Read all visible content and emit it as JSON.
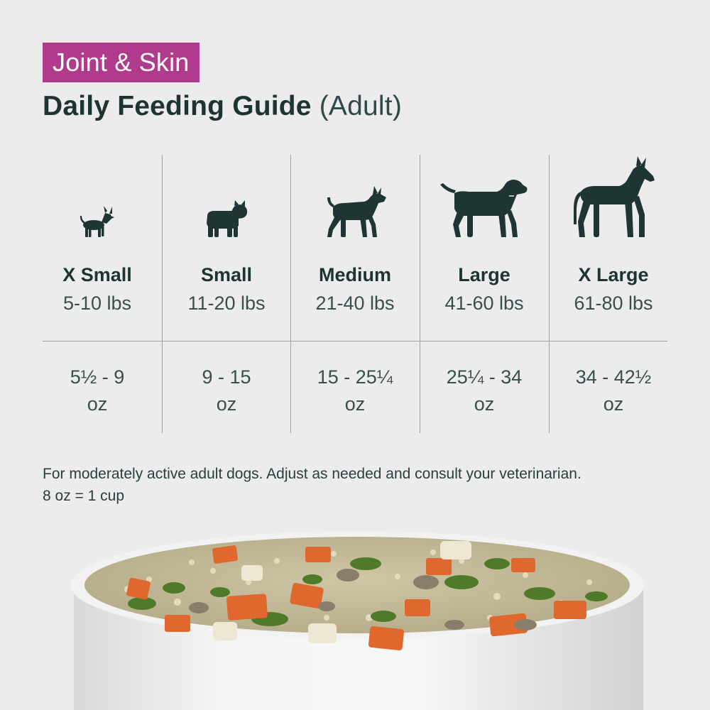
{
  "header": {
    "badge": "Joint & Skin",
    "title": "Daily Feeding Guide",
    "title_suffix": "(Adult)"
  },
  "sizes": [
    {
      "icon": "chihuahua-icon",
      "name": "X Small",
      "range": "5-10 lbs",
      "amount_line1": "5½ - 9",
      "amount_line2": "oz"
    },
    {
      "icon": "bulldog-icon",
      "name": "Small",
      "range": "11-20 lbs",
      "amount_line1": "9 - 15",
      "amount_line2": "oz"
    },
    {
      "icon": "terrier-icon",
      "name": "Medium",
      "range": "21-40 lbs",
      "amount_line1": "15 - 25¼",
      "amount_line2": "oz"
    },
    {
      "icon": "retriever-icon",
      "name": "Large",
      "range": "41-60 lbs",
      "amount_line1": "25¼ - 34",
      "amount_line2": "oz"
    },
    {
      "icon": "great-dane-icon",
      "name": "X Large",
      "range": "61-80 lbs",
      "amount_line1": "34 - 42½",
      "amount_line2": "oz"
    }
  ],
  "note": {
    "line1": "For moderately active adult dogs. Adjust as needed and consult your veterinarian.",
    "line2": "8 oz = 1 cup"
  },
  "colors": {
    "badge_bg": "#b03a8c",
    "text_dark": "#1e3433",
    "background": "#ececec",
    "rule": "#9da5a5"
  }
}
